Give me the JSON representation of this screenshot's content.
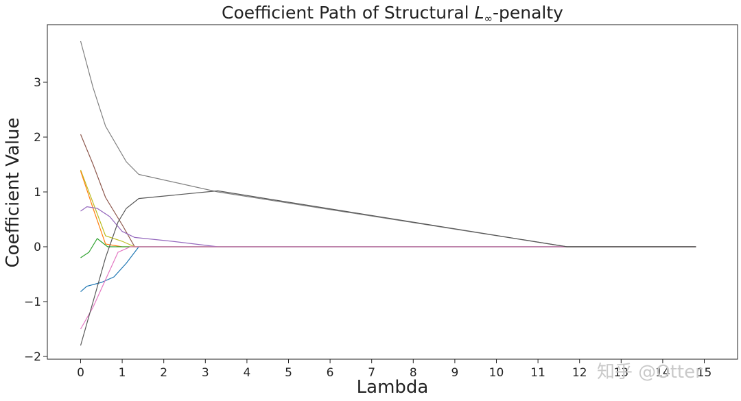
{
  "chart_data": {
    "type": "line",
    "title": "Coefficient Path of Structural L∞-penalty",
    "title_parts": {
      "prefix": "Coefficient Path of Structural ",
      "math": "L",
      "subscript": "∞",
      "suffix": "-penalty"
    },
    "xlabel": "Lambda",
    "ylabel": "Coefficient Value",
    "xlim": [
      -0.8,
      15.8
    ],
    "ylim": [
      -2.05,
      4.05
    ],
    "xticks": [
      0,
      1,
      2,
      3,
      4,
      5,
      6,
      7,
      8,
      9,
      10,
      11,
      12,
      13,
      14,
      15
    ],
    "yticks": [
      -2,
      -1,
      0,
      1,
      2,
      3
    ],
    "ytick_labels": [
      "−2",
      "−1",
      "0",
      "1",
      "2",
      "3"
    ],
    "grid": false,
    "legend": "none",
    "series": [
      {
        "color": "#7f7f7f",
        "x": [
          0,
          0.3,
          0.6,
          1.1,
          1.4,
          3.3,
          11.7,
          14.8
        ],
        "y": [
          3.75,
          2.9,
          2.2,
          1.55,
          1.32,
          1.0,
          0.0,
          0.0
        ]
      },
      {
        "color": "#8c564b",
        "x": [
          0,
          0.3,
          0.6,
          1.0,
          1.3,
          11.7,
          14.8
        ],
        "y": [
          2.05,
          1.5,
          0.9,
          0.4,
          0.0,
          0.0,
          0.0
        ]
      },
      {
        "color": "#bcbd22",
        "x": [
          0,
          0.3,
          0.6,
          1.0,
          1.3,
          14.8
        ],
        "y": [
          1.4,
          0.8,
          0.2,
          0.1,
          0.0,
          0.0
        ]
      },
      {
        "color": "#ff7f0e",
        "x": [
          0,
          0.3,
          0.6,
          1.0,
          14.8
        ],
        "y": [
          1.38,
          0.7,
          0.05,
          0.0,
          0.0
        ]
      },
      {
        "color": "#9467bd",
        "x": [
          0,
          0.15,
          0.4,
          0.7,
          1.0,
          1.3,
          2.2,
          3.3,
          14.8
        ],
        "y": [
          0.65,
          0.73,
          0.7,
          0.55,
          0.28,
          0.17,
          0.1,
          0.0,
          0.0
        ]
      },
      {
        "color": "#2ca02c",
        "x": [
          0,
          0.2,
          0.4,
          0.65,
          14.8
        ],
        "y": [
          -0.2,
          -0.1,
          0.15,
          0.0,
          0.0
        ]
      },
      {
        "color": "#1f77b4",
        "x": [
          0,
          0.15,
          0.5,
          0.8,
          1.1,
          1.4,
          14.8
        ],
        "y": [
          -0.82,
          -0.72,
          -0.65,
          -0.55,
          -0.3,
          0.0,
          0.0
        ]
      },
      {
        "color": "#e377c2",
        "x": [
          0,
          0.3,
          0.6,
          0.9,
          1.2,
          14.8
        ],
        "y": [
          -1.5,
          -1.1,
          -0.6,
          -0.1,
          0.0,
          0.0
        ]
      },
      {
        "color": "#555555",
        "x": [
          0,
          0.3,
          0.6,
          0.9,
          1.1,
          1.4,
          3.3,
          11.7,
          14.8
        ],
        "y": [
          -1.8,
          -1.0,
          -0.2,
          0.45,
          0.7,
          0.88,
          1.02,
          0.0,
          0.0
        ]
      }
    ]
  },
  "watermark": "知乎 @Otter"
}
